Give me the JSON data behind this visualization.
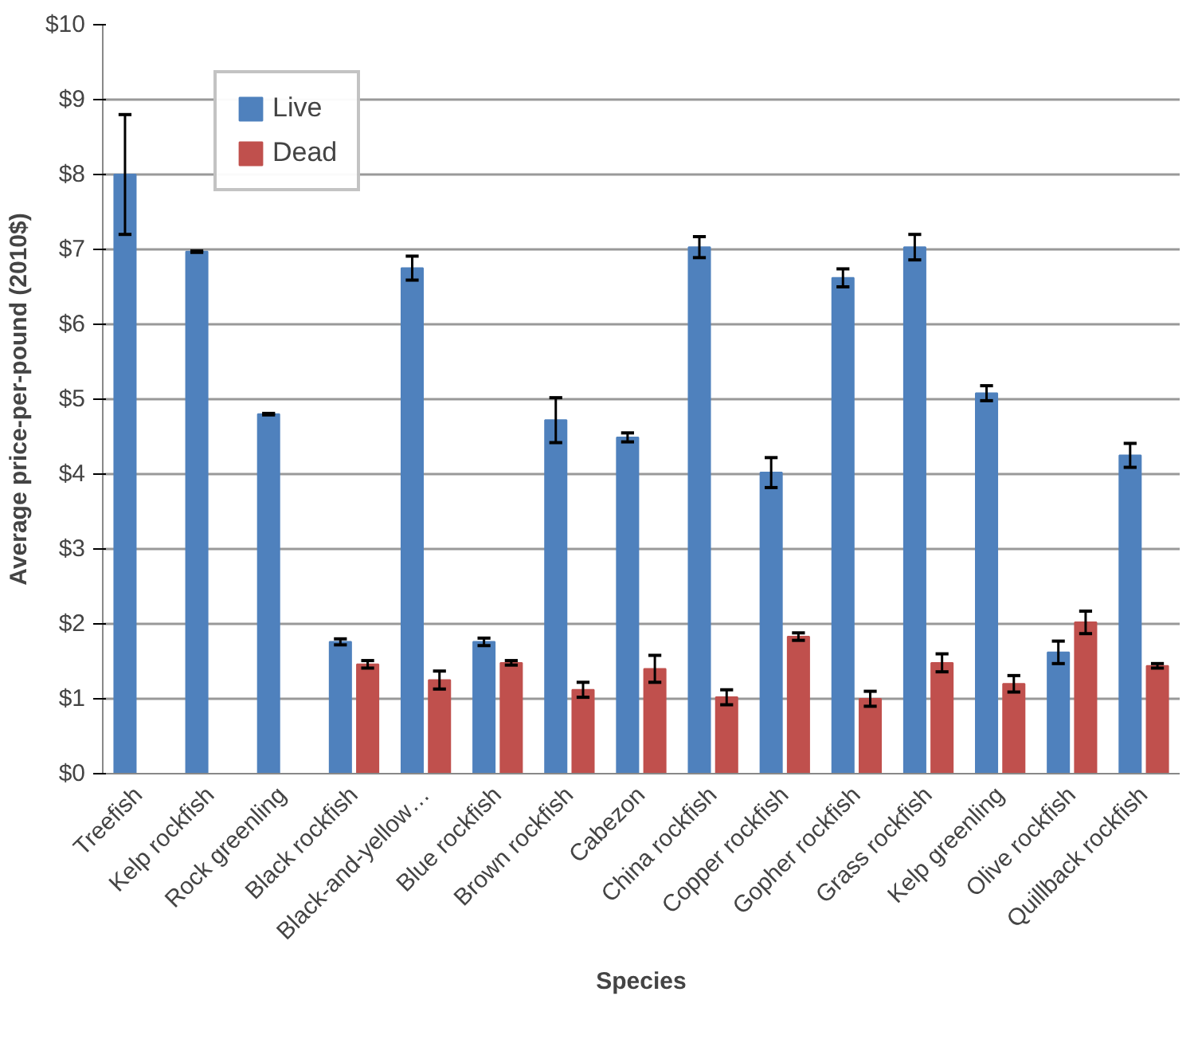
{
  "chart_data": {
    "type": "bar",
    "xlabel": "Species",
    "ylabel": "Average price-per-pound (2010$)",
    "categories": [
      "Treefish",
      "Kelp rockfish",
      "Rock greenling",
      "Black rockfish",
      "Black-and-yellow…",
      "Blue rockfish",
      "Brown rockfish",
      "Cabezon",
      "China rockfish",
      "Copper rockfish",
      "Gopher rockfish",
      "Grass rockfish",
      "Kelp greenling",
      "Olive rockfish",
      "Quillback rockfish"
    ],
    "series": [
      {
        "name": "Live",
        "color": "#4f81bd",
        "values": [
          8.0,
          6.97,
          4.8,
          1.76,
          6.75,
          1.76,
          4.72,
          4.49,
          7.03,
          4.02,
          6.62,
          7.03,
          5.08,
          1.62,
          4.25
        ],
        "errors": [
          0.8,
          0.01,
          0.01,
          0.04,
          0.16,
          0.05,
          0.3,
          0.06,
          0.14,
          0.2,
          0.12,
          0.17,
          0.1,
          0.15,
          0.16
        ]
      },
      {
        "name": "Dead",
        "color": "#c0504d",
        "values": [
          0,
          0,
          0,
          1.46,
          1.25,
          1.48,
          1.12,
          1.4,
          1.02,
          1.83,
          1.0,
          1.48,
          1.2,
          2.02,
          1.44
        ],
        "errors": [
          null,
          null,
          null,
          0.05,
          0.12,
          0.03,
          0.1,
          0.18,
          0.1,
          0.05,
          0.1,
          0.12,
          0.11,
          0.15,
          0.03
        ]
      }
    ],
    "ylim": [
      0,
      10
    ],
    "yticks": [
      {
        "value": 0,
        "label": "$0"
      },
      {
        "value": 1,
        "label": "$1"
      },
      {
        "value": 2,
        "label": "$2"
      },
      {
        "value": 3,
        "label": "$3"
      },
      {
        "value": 4,
        "label": "$4"
      },
      {
        "value": 5,
        "label": "$5"
      },
      {
        "value": 6,
        "label": "$6"
      },
      {
        "value": 7,
        "label": "$7"
      },
      {
        "value": 8,
        "label": "$8"
      },
      {
        "value": 9,
        "label": "$9"
      },
      {
        "value": 10,
        "label": "$10"
      }
    ],
    "grid": "y",
    "legend": "top left"
  }
}
